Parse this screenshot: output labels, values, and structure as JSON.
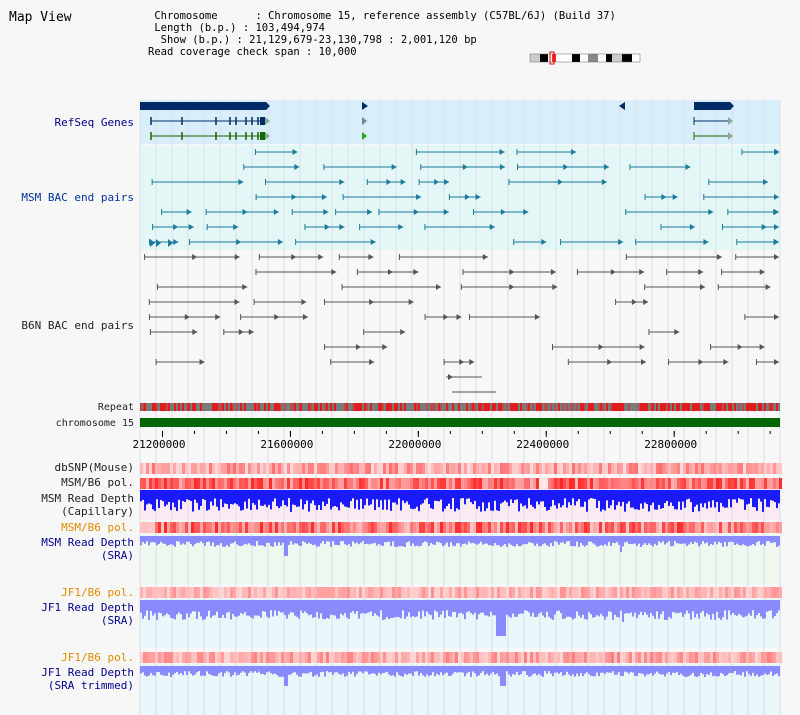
{
  "header": {
    "title": "Map View",
    "info_lines": [
      " Chromosome      : Chromosome 15, reference assembly (C57BL/6J) (Build 37)",
      " Length (b.p.) : 103,494,974",
      "  Show (b.p.) : 21,129,679-23,130,798 : 2,001,120 bp",
      "Read coverage check span : 10,000"
    ]
  },
  "tracks": {
    "refseq": "RefSeq Genes",
    "msm_bac": "MSM BAC end pairs",
    "b6n_bac": "B6N BAC end pairs",
    "repeat": "Repeat",
    "chromosome": "chromosome 15",
    "dbsnp": "dbSNP(Mouse)",
    "msm_b6_pol_1": "MSM/B6 pol.",
    "msm_depth_cap_1": "MSM Read Depth",
    "msm_depth_cap_2": "(Capillary)",
    "msm_b6_pol_2": "MSM/B6 pol.",
    "msm_depth_sra_1": "MSM Read Depth",
    "msm_depth_sra_2": "(SRA)",
    "jf1_pol_1": "JF1/B6 pol.",
    "jf1_depth_1": "JF1 Read Depth",
    "jf1_depth_2": "(SRA)",
    "jf1_pol_2": "JF1/B6 pol.",
    "jf1_trim_1": "JF1 Read Depth",
    "jf1_trim_2": "(SRA trimmed)"
  },
  "ruler": {
    "ticks": [
      "21200000",
      "21600000",
      "22000000",
      "22400000",
      "22800000"
    ],
    "tick_values": [
      21200000,
      21600000,
      22000000,
      22400000,
      22800000
    ],
    "range": [
      21129679,
      23130798
    ]
  },
  "colors": {
    "refseq_bg": "#d8eefa",
    "bac_bg": "#e4f7f7",
    "gene": "#002b66",
    "msm_feature": "#1a7a9a",
    "b6n_feature": "#555555",
    "chromosome_bar": "#006600",
    "depth_cap": "#1a1aff",
    "depth_sra": "#8a8aff",
    "snp": "#ff2a2a"
  }
}
